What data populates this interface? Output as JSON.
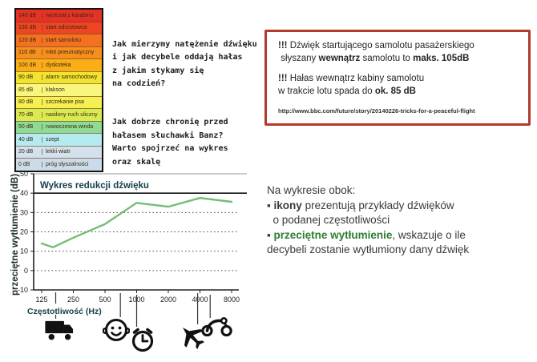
{
  "scale_table": {
    "rows": [
      {
        "db": "140 dB",
        "label": "wystrzał z karabinu",
        "color": "#e63226"
      },
      {
        "db": "130 dB",
        "label": "start odrzutowca",
        "color": "#ee4523"
      },
      {
        "db": "120 dB",
        "label": "start samolotu",
        "color": "#f37121"
      },
      {
        "db": "110 dB",
        "label": "młot pneumatyczny",
        "color": "#f78f1e"
      },
      {
        "db": "100 dB",
        "label": "dyskoteka",
        "color": "#fbad18"
      },
      {
        "db": "90 dB",
        "label": "alarm samochodowy",
        "color": "#f2e32e"
      },
      {
        "db": "85 dB",
        "label": "klakson",
        "color": "#f8f67d"
      },
      {
        "db": "80 dB",
        "label": "szczekanie psa",
        "color": "#f5ef52"
      },
      {
        "db": "70 dB",
        "label": "nasilony ruch uliczny",
        "color": "#dcea51"
      },
      {
        "db": "50 dB",
        "label": "nowoczesna winda",
        "color": "#90db93"
      },
      {
        "db": "40 dB",
        "label": "szept",
        "color": "#b5ebf0"
      },
      {
        "db": "20 dB",
        "label": "lekki wiatr",
        "color": "#d2e1eb"
      },
      {
        "db": "0 dB",
        "label": "próg słyszalności",
        "color": "#cbdbe7"
      }
    ]
  },
  "intro": {
    "para1": "Jak mierzymy natężenie dźwięku\ni jak decybele oddają hałas\nz jakim stykamy się\nna codzień?",
    "para2": "Jak dobrze chronię przed\nhałasem słuchawki Banz?\nWarto spojrzeć na wykres\noraz skalę"
  },
  "fact_box": {
    "border_color": "#b23b2b",
    "lines1": [
      [
        {
          "t": "!!! ",
          "b": true
        },
        {
          "t": "Dźwięk startującego samolotu pasażerskiego"
        }
      ],
      [
        {
          "t": " słyszany "
        },
        {
          "t": "wewnątrz",
          "b": true
        },
        {
          "t": " samolotu to "
        },
        {
          "t": "maks. 105dB",
          "b": true
        }
      ]
    ],
    "lines2": [
      [
        {
          "t": "!!! ",
          "b": true
        },
        {
          "t": "Hałas wewnątrz kabiny samolotu"
        }
      ],
      [
        {
          "t": "w trakcie lotu spada do "
        },
        {
          "t": "ok. 85 dB",
          "b": true
        }
      ]
    ],
    "source_url": "http://www.bbc.com/future/story/20140226-tricks-for-a-peaceful-flight"
  },
  "note": {
    "heading": "Na wykresie obok:",
    "accent_green": "#2e7d32",
    "lines": [
      [
        {
          "t": "▪ "
        },
        {
          "t": "ikony",
          "b": true
        },
        {
          "t": " prezentują przykłady dźwięków"
        }
      ],
      [
        {
          "t": "  o podanej częstotliwości"
        }
      ],
      [
        {
          "t": "▪ "
        },
        {
          "t": "przeciętne wytłumienie",
          "b": true,
          "c": "#2e7d32"
        },
        {
          "t": ", wskazuje o ile"
        }
      ],
      [
        {
          "t": "decybeli zostanie wytłumiony dany dźwięk"
        }
      ]
    ]
  },
  "chart_data": {
    "type": "line",
    "title": "Wykres redukcji dźwięku",
    "xlabel": "Częstotliwość (Hz)",
    "ylabel": "przeciętne wytłumienie (dB)",
    "x_scale": "log",
    "x_ticks": [
      125,
      250,
      500,
      1000,
      2000,
      4000,
      8000
    ],
    "y_ticks": [
      50,
      40,
      30,
      20,
      10,
      0,
      -10
    ],
    "ylim": [
      -10,
      50
    ],
    "solid_gridlines": [
      50,
      40
    ],
    "dotted_gridlines": [
      30,
      20,
      10,
      0
    ],
    "line_color": "#74bd74",
    "series": [
      {
        "name": "przeciętne wytłumienie",
        "points": [
          [
            125,
            14
          ],
          [
            160,
            12
          ],
          [
            250,
            17
          ],
          [
            500,
            24
          ],
          [
            1000,
            35
          ],
          [
            2000,
            33
          ],
          [
            4000,
            37.5
          ],
          [
            8000,
            35.5
          ]
        ]
      }
    ],
    "icons": [
      {
        "name": "truck",
        "freq": 170
      },
      {
        "name": "baby",
        "freq": 700
      },
      {
        "name": "alarm-clock",
        "freq": 1000
      },
      {
        "name": "airplane",
        "freq": 3800
      },
      {
        "name": "bicycle",
        "freq": 5000
      }
    ]
  }
}
